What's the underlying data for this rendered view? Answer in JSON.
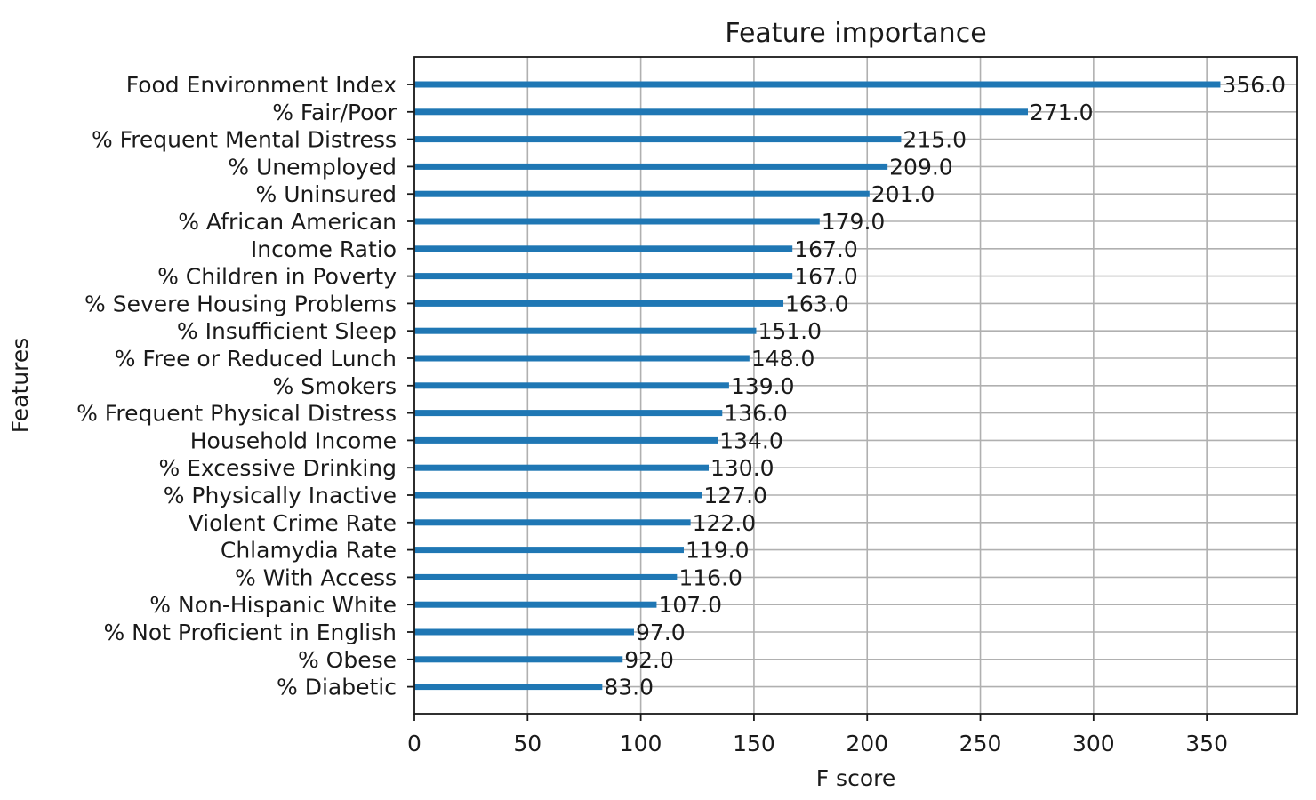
{
  "chart_data": {
    "type": "bar",
    "orientation": "horizontal",
    "title": "Feature importance",
    "xlabel": "F score",
    "ylabel": "Features",
    "xlim": [
      0,
      390
    ],
    "xticks": [
      0,
      50,
      100,
      150,
      200,
      250,
      300,
      350
    ],
    "grid": true,
    "bar_color": "#1f77b4",
    "categories": [
      "Food Environment Index",
      "% Fair/Poor",
      "% Frequent Mental Distress",
      "% Unemployed",
      "% Uninsured",
      "% African American",
      "Income Ratio",
      "% Children in Poverty",
      "% Severe Housing Problems",
      "% Insufficient Sleep",
      "% Free or Reduced Lunch",
      "% Smokers",
      "% Frequent Physical Distress",
      "Household Income",
      "% Excessive Drinking",
      "% Physically Inactive",
      "Violent Crime Rate",
      "Chlamydia Rate",
      "% With Access",
      "% Non-Hispanic White",
      "% Not Proficient in English",
      "% Obese",
      "% Diabetic"
    ],
    "values": [
      356.0,
      271.0,
      215.0,
      209.0,
      201.0,
      179.0,
      167.0,
      167.0,
      163.0,
      151.0,
      148.0,
      139.0,
      136.0,
      134.0,
      130.0,
      127.0,
      122.0,
      119.0,
      116.0,
      107.0,
      97.0,
      92.0,
      83.0
    ],
    "value_labels": [
      "356.0",
      "271.0",
      "215.0",
      "209.0",
      "201.0",
      "179.0",
      "167.0",
      "167.0",
      "163.0",
      "151.0",
      "148.0",
      "139.0",
      "136.0",
      "134.0",
      "130.0",
      "127.0",
      "122.0",
      "119.0",
      "116.0",
      "107.0",
      "97.0",
      "92.0",
      "83.0"
    ]
  }
}
